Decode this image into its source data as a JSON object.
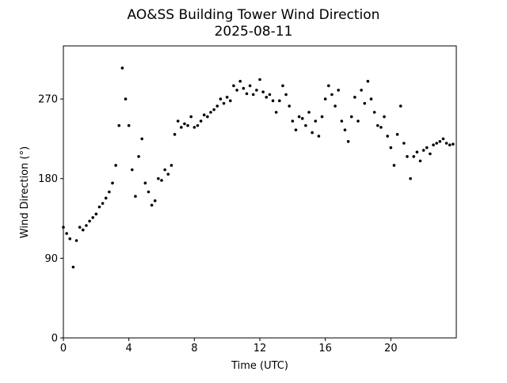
{
  "chart_data": {
    "type": "scatter",
    "title": "AO&SS Building Tower Wind Direction",
    "subtitle": "2025-08-11",
    "x_label": "Time (UTC)",
    "y_label": "Wind Direction (°)",
    "color": "#000000",
    "xlim": [
      0,
      24
    ],
    "xticks": [
      0,
      4,
      8,
      12,
      16,
      20
    ],
    "ylim": [
      0,
      330
    ],
    "yticks": [
      0,
      90,
      180,
      270
    ],
    "x": [
      0,
      0.2,
      0.4,
      0.6,
      0.8,
      1,
      1.2,
      1.4,
      1.6,
      1.8,
      2,
      2.2,
      2.4,
      2.6,
      2.8,
      3,
      3.2,
      3.4,
      3.6,
      3.8,
      4,
      4.2,
      4.4,
      4.6,
      4.8,
      5,
      5.2,
      5.4,
      5.6,
      5.8,
      6,
      6.2,
      6.4,
      6.6,
      6.8,
      7,
      7.2,
      7.4,
      7.6,
      7.8,
      8,
      8.2,
      8.4,
      8.6,
      8.8,
      9,
      9.2,
      9.4,
      9.6,
      9.8,
      10,
      10.2,
      10.4,
      10.6,
      10.8,
      11,
      11.2,
      11.4,
      11.6,
      11.8,
      12,
      12.2,
      12.4,
      12.6,
      12.8,
      13,
      13.2,
      13.4,
      13.6,
      13.8,
      14,
      14.2,
      14.4,
      14.6,
      14.8,
      15,
      15.2,
      15.4,
      15.6,
      15.8,
      16,
      16.2,
      16.4,
      16.6,
      16.8,
      17,
      17.2,
      17.4,
      17.6,
      17.8,
      18,
      18.2,
      18.4,
      18.6,
      18.8,
      19,
      19.2,
      19.4,
      19.6,
      19.8,
      20,
      20.2,
      20.4,
      20.6,
      20.8,
      21,
      21.2,
      21.4,
      21.6,
      21.8,
      22,
      22.2,
      22.4,
      22.6,
      22.8,
      23,
      23.2,
      23.4,
      23.6,
      23.8
    ],
    "values": [
      125,
      118,
      112,
      80,
      110,
      125,
      122,
      127,
      132,
      136,
      140,
      148,
      152,
      158,
      165,
      175,
      195,
      240,
      305,
      270,
      240,
      190,
      160,
      205,
      225,
      175,
      165,
      150,
      155,
      180,
      178,
      190,
      185,
      195,
      230,
      245,
      238,
      242,
      240,
      250,
      238,
      240,
      245,
      252,
      250,
      255,
      258,
      262,
      270,
      265,
      272,
      268,
      285,
      280,
      290,
      282,
      276,
      285,
      275,
      280,
      292,
      278,
      272,
      275,
      268,
      255,
      268,
      285,
      275,
      262,
      245,
      235,
      250,
      248,
      240,
      255,
      232,
      245,
      228,
      250,
      270,
      285,
      275,
      262,
      280,
      245,
      235,
      222,
      250,
      272,
      245,
      280,
      265,
      290,
      270,
      255,
      240,
      238,
      250,
      228,
      215,
      195,
      230,
      262,
      220,
      205,
      180,
      205,
      210,
      200,
      212,
      215,
      208,
      218,
      220,
      222,
      225,
      220,
      218,
      219
    ]
  }
}
